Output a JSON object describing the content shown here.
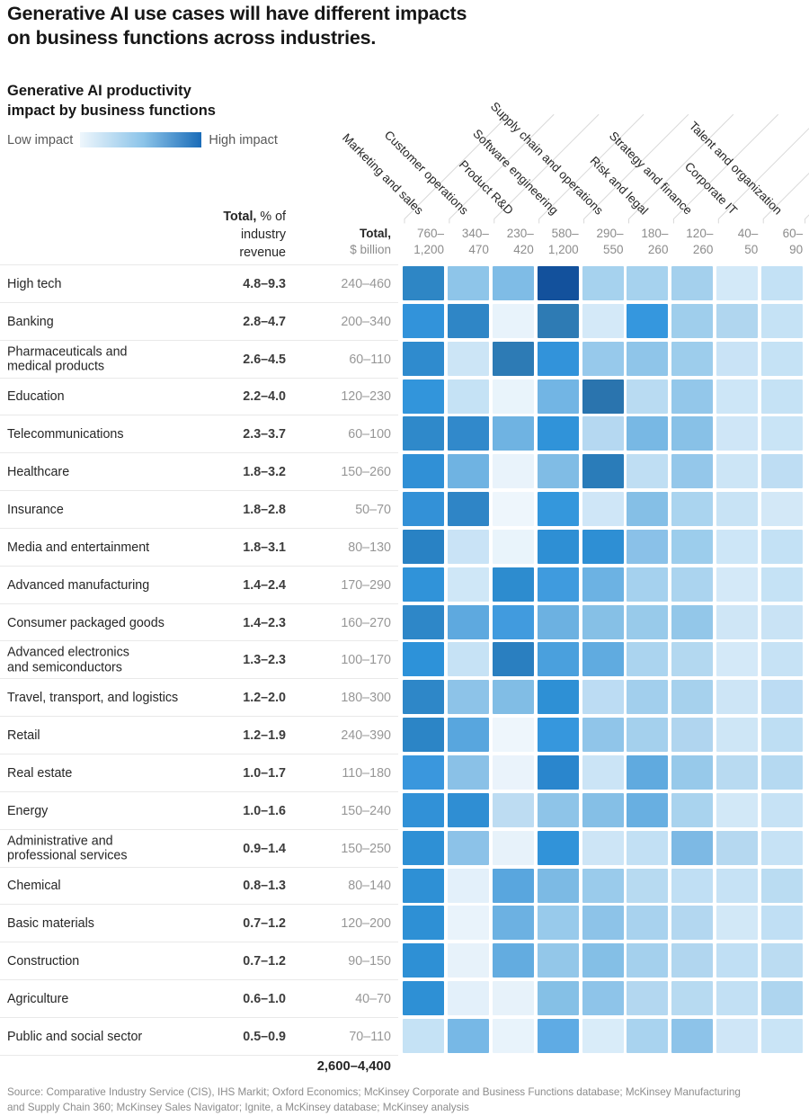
{
  "title": {
    "line1": "Generative AI use cases will have different impacts",
    "line2": "on business functions across industries."
  },
  "chart": {
    "subtitle_line1": "Generative AI productivity",
    "subtitle_line2": "impact by business functions",
    "legend": {
      "low_label": "Low impact",
      "high_label": "High impact",
      "gradient_start": "#eef6fc",
      "gradient_mid": "#8cc4e9",
      "gradient_end": "#1a6cb8"
    }
  },
  "chart_data": {
    "type": "heatmap",
    "value_encoding": "cell color encodes relative productivity impact (light blue = low impact, dark blue = high impact)",
    "columns": [
      "Marketing and sales",
      "Customer operations",
      "Product R&D",
      "Software engineering",
      "Supply chain and operations",
      "Risk and legal",
      "Strategy and finance",
      "Corporate IT",
      "Talent and organization"
    ],
    "usd_header_bold": "Total,",
    "usd_header_rest": "$ billion",
    "row_header_bold": "Total,",
    "row_header_rest": " % of",
    "row_header_line2": "industry",
    "row_header_line3": "revenue",
    "column_totals": [
      "760–\n1,200",
      "340–\n470",
      "230–\n420",
      "580–\n1,200",
      "290–\n550",
      "180–\n260",
      "120–\n260",
      "40–\n50",
      "60–\n90"
    ],
    "grand_total": "2,600–4,400",
    "rows": [
      {
        "label_lines": [
          "High tech"
        ],
        "pct": "4.8–9.3",
        "usd": "240–460",
        "cells": [
          "#2e86c5",
          "#8ec5e9",
          "#7fbce6",
          "#13519c",
          "#a6d2ee",
          "#a6d2ee",
          "#a4d0ed",
          "#d3e9f8",
          "#c3e1f5"
        ]
      },
      {
        "label_lines": [
          "Banking"
        ],
        "pct": "2.8–4.7",
        "usd": "200–340",
        "cells": [
          "#3293da",
          "#2f86c6",
          "#e8f3fb",
          "#2e7bb4",
          "#d4e9f8",
          "#3597de",
          "#9fceec",
          "#b0d6ef",
          "#c5e2f5"
        ]
      },
      {
        "label_lines": [
          "Pharmaceuticals and",
          "medical products"
        ],
        "pct": "2.6–4.5",
        "usd": "60–110",
        "cells": [
          "#2f8bce",
          "#cce5f6",
          "#2d7bb5",
          "#3293da",
          "#97c9eb",
          "#8fc5e9",
          "#9dcdec",
          "#c9e3f6",
          "#c5e2f5"
        ]
      },
      {
        "label_lines": [
          "Education"
        ],
        "pct": "2.2–4.0",
        "usd": "120–230",
        "cells": [
          "#3295db",
          "#c5e2f5",
          "#e9f4fb",
          "#72b5e4",
          "#2a74ae",
          "#b9dbf2",
          "#93c7ea",
          "#cde6f7",
          "#c5e2f5"
        ]
      },
      {
        "label_lines": [
          "Telecommunications"
        ],
        "pct": "2.3–3.7",
        "usd": "60–100",
        "cells": [
          "#2f89ca",
          "#3189cb",
          "#6fb3e2",
          "#3093d9",
          "#b5d8f1",
          "#78b8e4",
          "#88c1e7",
          "#cfe6f7",
          "#c9e4f6"
        ]
      },
      {
        "label_lines": [
          "Healthcare"
        ],
        "pct": "1.8–3.2",
        "usd": "150–260",
        "cells": [
          "#3090d6",
          "#6fb3e2",
          "#e9f3fb",
          "#80bce5",
          "#2a7cb9",
          "#bfdef3",
          "#94c7ea",
          "#cce5f6",
          "#beddf3"
        ]
      },
      {
        "label_lines": [
          "Insurance"
        ],
        "pct": "1.8–2.8",
        "usd": "50–70",
        "cells": [
          "#3391d7",
          "#2f85c6",
          "#eef6fc",
          "#3497dc",
          "#cfe6f7",
          "#85bfe6",
          "#aad4ef",
          "#c8e3f5",
          "#d3e8f7"
        ]
      },
      {
        "label_lines": [
          "Media and entertainment"
        ],
        "pct": "1.8–3.1",
        "usd": "80–130",
        "cells": [
          "#2982c4",
          "#c9e3f6",
          "#e9f4fb",
          "#2e8fd4",
          "#2e8fd4",
          "#8ac1e8",
          "#9ccdec",
          "#cde6f7",
          "#c3e1f5"
        ]
      },
      {
        "label_lines": [
          "Advanced manufacturing"
        ],
        "pct": "1.4–2.4",
        "usd": "170–290",
        "cells": [
          "#3093d9",
          "#cfe7f7",
          "#2d8ccf",
          "#3f9bde",
          "#6cb2e3",
          "#a5d1ee",
          "#abd4ef",
          "#d4e9f8",
          "#c5e2f5"
        ]
      },
      {
        "label_lines": [
          "Consumer packaged goods"
        ],
        "pct": "1.4–2.3",
        "usd": "160–270",
        "cells": [
          "#2e87c8",
          "#5ea9df",
          "#419bde",
          "#6cb1e1",
          "#86c0e6",
          "#98caea",
          "#93c7e9",
          "#cfe6f6",
          "#c9e3f5"
        ]
      },
      {
        "label_lines": [
          "Advanced electronics",
          "and semiconductors"
        ],
        "pct": "1.3–2.3",
        "usd": "100–170",
        "cells": [
          "#2d92d9",
          "#c6e2f5",
          "#2a7fc0",
          "#4aa0dd",
          "#60abe0",
          "#abd4ef",
          "#b3d8f0",
          "#d4e9f8",
          "#c6e2f5"
        ]
      },
      {
        "label_lines": [
          "Travel, transport, and logistics"
        ],
        "pct": "1.2–2.0",
        "usd": "180–300",
        "cells": [
          "#2e87c8",
          "#8dc3e8",
          "#81bde5",
          "#2e90d5",
          "#bcdcf3",
          "#a2cfed",
          "#a6d1ed",
          "#cde5f6",
          "#bcdcf3"
        ]
      },
      {
        "label_lines": [
          "Retail"
        ],
        "pct": "1.2–1.9",
        "usd": "240–390",
        "cells": [
          "#2c85c6",
          "#58a6de",
          "#eef6fc",
          "#3697dd",
          "#90c5e9",
          "#a4d0ed",
          "#b0d5ef",
          "#cee6f6",
          "#bedef3"
        ]
      },
      {
        "label_lines": [
          "Real estate"
        ],
        "pct": "1.0–1.7",
        "usd": "110–180",
        "cells": [
          "#3a97dd",
          "#8ac1e7",
          "#eaf3fb",
          "#2a86cd",
          "#cbe4f6",
          "#60aadf",
          "#97c9ea",
          "#b8daf1",
          "#b5d9f1"
        ]
      },
      {
        "label_lines": [
          "Energy"
        ],
        "pct": "1.0–1.6",
        "usd": "150–240",
        "cells": [
          "#3191d7",
          "#2f8ed3",
          "#bddcf2",
          "#8ec4e8",
          "#85bfe6",
          "#68afe1",
          "#a9d3ee",
          "#d2e8f7",
          "#c6e2f5"
        ]
      },
      {
        "label_lines": [
          "Administrative and",
          "professional services"
        ],
        "pct": "0.9–1.4",
        "usd": "150–250",
        "cells": [
          "#2e90d5",
          "#8cc2e8",
          "#e7f2fa",
          "#3193d9",
          "#cde5f6",
          "#c2e0f4",
          "#7db9e4",
          "#b5d8f0",
          "#c6e2f5"
        ]
      },
      {
        "label_lines": [
          "Chemical"
        ],
        "pct": "0.8–1.3",
        "usd": "80–140",
        "cells": [
          "#2e90d5",
          "#e3f0fa",
          "#59a6de",
          "#7cbae4",
          "#9acbeb",
          "#b7daf1",
          "#c0dff4",
          "#c6e2f5",
          "#badcf2"
        ]
      },
      {
        "label_lines": [
          "Basic materials"
        ],
        "pct": "0.7–1.2",
        "usd": "120–200",
        "cells": [
          "#2e90d5",
          "#e9f3fb",
          "#6cb1e2",
          "#98caeb",
          "#8dc3e8",
          "#a8d2ee",
          "#b3d7f0",
          "#d2e8f7",
          "#c0dff4"
        ]
      },
      {
        "label_lines": [
          "Construction"
        ],
        "pct": "0.7–1.2",
        "usd": "90–150",
        "cells": [
          "#2e90d5",
          "#e7f2fa",
          "#63ace0",
          "#93c7e9",
          "#84bfe6",
          "#a4d0ed",
          "#b1d6ef",
          "#c0dff4",
          "#bbdcf2"
        ]
      },
      {
        "label_lines": [
          "Agriculture"
        ],
        "pct": "0.6–1.0",
        "usd": "40–70",
        "cells": [
          "#2e90d5",
          "#e3f0fa",
          "#e7f2fa",
          "#85c0e6",
          "#8ec4e9",
          "#b3d7f0",
          "#b7daf1",
          "#c2e0f4",
          "#aed5ef"
        ]
      },
      {
        "label_lines": [
          "Public and social sector"
        ],
        "pct": "0.5–0.9",
        "usd": "70–110",
        "cells": [
          "#c5e2f5",
          "#77b8e6",
          "#e8f3fb",
          "#5fabe4",
          "#d9ecf9",
          "#a9d3ef",
          "#8dc3e9",
          "#cfe6f7",
          "#c9e4f6"
        ]
      }
    ]
  },
  "source": {
    "line1": "Source: Comparative Industry Service (CIS), IHS Markit; Oxford Economics; McKinsey Corporate and Business Functions database; McKinsey Manufacturing",
    "line2": "and Supply Chain 360; McKinsey Sales Navigator; Ignite, a McKinsey database; McKinsey analysis"
  }
}
